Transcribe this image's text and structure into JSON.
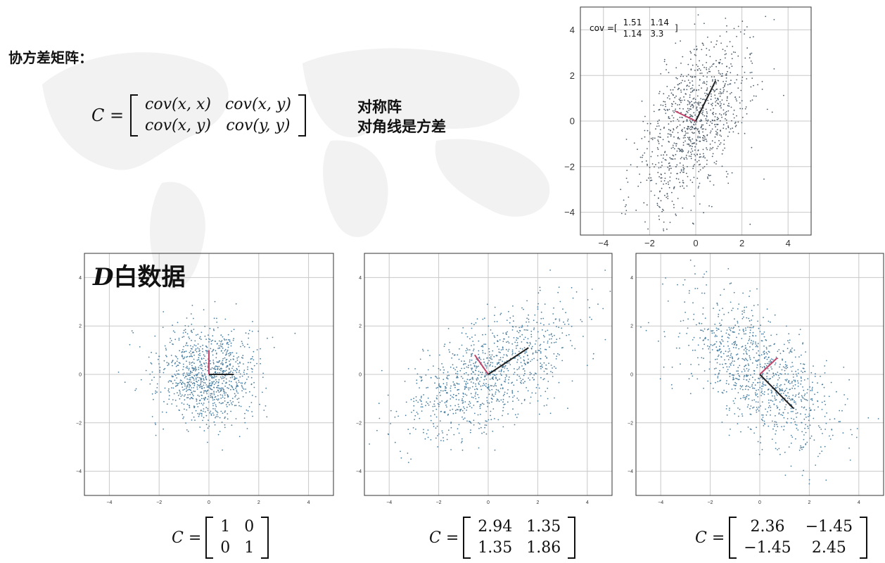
{
  "heading": "协方差矩阵：",
  "cov_matrix": {
    "lhs": "C =",
    "rows": [
      [
        "cov(x, x)",
        "cov(x, y)"
      ],
      [
        "cov(x, y)",
        "cov(y, y)"
      ]
    ]
  },
  "notes": [
    "对称阵",
    "对角线是方差"
  ],
  "white_label": {
    "italic": "D",
    "text": "白数据"
  },
  "equations": [
    {
      "lhs": "C =",
      "rows": [
        [
          "1",
          "0"
        ],
        [
          "0",
          "1"
        ]
      ]
    },
    {
      "lhs": "C =",
      "rows": [
        [
          "2.94",
          "1.35"
        ],
        [
          "1.35",
          "1.86"
        ]
      ]
    },
    {
      "lhs": "C =",
      "rows": [
        [
          "2.36",
          "−1.45"
        ],
        [
          "−1.45",
          "2.45"
        ]
      ]
    }
  ],
  "top_annotation": {
    "prefix": "cov =",
    "rows": [
      [
        "1.51",
        "1.14"
      ],
      [
        "1.14",
        "3.3"
      ]
    ]
  },
  "chart_data": [
    {
      "type": "scatter",
      "id": "top",
      "xlim": [
        -5,
        5
      ],
      "ylim": [
        -5,
        5
      ],
      "xticks": [
        "−4",
        "−2",
        "0",
        "2",
        "4"
      ],
      "yticks": [
        "−4",
        "−2",
        "0",
        "2",
        "4"
      ],
      "cov": [
        [
          1.51,
          1.14
        ],
        [
          1.14,
          3.3
        ]
      ],
      "n_points": 1000,
      "grid": true,
      "colors": {
        "points": "#4a5a68",
        "axis1": "#222222",
        "axis2": "#c2446a"
      }
    },
    {
      "type": "scatter",
      "id": "white",
      "xlim": [
        -5,
        5
      ],
      "ylim": [
        -5,
        5
      ],
      "xticks": [
        "−4",
        "−2",
        "0",
        "2",
        "4"
      ],
      "yticks": [
        "−4",
        "−2",
        "0",
        "2",
        "4"
      ],
      "cov": [
        [
          1,
          0
        ],
        [
          0,
          1
        ]
      ],
      "n_points": 1000,
      "grid": true,
      "colors": {
        "points": "#4b7fa0",
        "axis1": "#222222",
        "axis2": "#c2446a"
      }
    },
    {
      "type": "scatter",
      "id": "pos",
      "xlim": [
        -5,
        5
      ],
      "ylim": [
        -5,
        5
      ],
      "xticks": [
        "−4",
        "−2",
        "0",
        "2",
        "4"
      ],
      "yticks": [
        "−4",
        "−2",
        "0",
        "2",
        "4"
      ],
      "cov": [
        [
          2.94,
          1.35
        ],
        [
          1.35,
          1.86
        ]
      ],
      "n_points": 1000,
      "grid": true,
      "colors": {
        "points": "#4b7fa0",
        "axis1": "#222222",
        "axis2": "#c2446a"
      }
    },
    {
      "type": "scatter",
      "id": "neg",
      "xlim": [
        -5,
        5
      ],
      "ylim": [
        -5,
        5
      ],
      "xticks": [
        "−4",
        "−2",
        "0",
        "2",
        "4"
      ],
      "yticks": [
        "−4",
        "−2",
        "0",
        "2",
        "4"
      ],
      "cov": [
        [
          2.36,
          -1.45
        ],
        [
          -1.45,
          2.45
        ]
      ],
      "n_points": 1000,
      "grid": true,
      "colors": {
        "points": "#4b7fa0",
        "axis1": "#222222",
        "axis2": "#c2446a"
      }
    }
  ]
}
